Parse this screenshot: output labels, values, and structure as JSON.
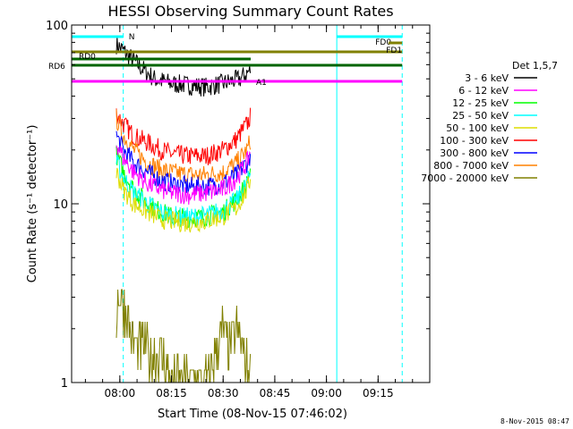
{
  "chart_data": {
    "type": "line",
    "title": "HESSI Observing Summary Count Rates",
    "ylabel": "Count Rate (s⁻¹ detector⁻¹)",
    "xlabel": "Start Time (08-Nov-15 07:46:02)",
    "y_scale": "log",
    "ylim": [
      1,
      100
    ],
    "xlim": [
      "07:46",
      "09:30"
    ],
    "x_ticks": [
      "08:00",
      "08:15",
      "08:30",
      "08:45",
      "09:00",
      "09:15"
    ],
    "y_ticks": [
      {
        "value": 1,
        "label": "1"
      },
      {
        "value": 10,
        "label": "10"
      },
      {
        "value": 100,
        "label": "100"
      }
    ],
    "legend": {
      "placement": "right",
      "title": "Det 1,5,7",
      "entries": [
        {
          "label": "3 - 6 keV",
          "color": "#000000"
        },
        {
          "label": "6 - 12 keV",
          "color": "#ff00ff"
        },
        {
          "label": "12 - 25 keV",
          "color": "#00ff00"
        },
        {
          "label": "25 - 50 keV",
          "color": "#00ffff"
        },
        {
          "label": "50 - 100 keV",
          "color": "#dddd00"
        },
        {
          "label": "100 - 300 keV",
          "color": "#ff0000"
        },
        {
          "label": "300 - 800 keV",
          "color": "#0000ff"
        },
        {
          "label": "800 - 7000 keV",
          "color": "#ff8000"
        },
        {
          "label": "7000 - 20000 keV",
          "color": "#808000"
        }
      ]
    },
    "series": [
      {
        "name": "3 - 6 keV",
        "color": "#000000",
        "x": [
          "07:59",
          "08:01",
          "08:03",
          "08:06",
          "08:10",
          "08:15",
          "08:20",
          "08:25",
          "08:30",
          "08:35",
          "08:38"
        ],
        "y": [
          78,
          72,
          66,
          58,
          50,
          47,
          46,
          45,
          47,
          50,
          56
        ]
      },
      {
        "name": "100 - 300 keV",
        "color": "#ff0000",
        "x": [
          "07:59",
          "08:01",
          "08:04",
          "08:08",
          "08:12",
          "08:15",
          "08:20",
          "08:25",
          "08:30",
          "08:34",
          "08:37",
          "08:38"
        ],
        "y": [
          32,
          28,
          24,
          22,
          20,
          19,
          18.5,
          18.5,
          20,
          23,
          28,
          31
        ]
      },
      {
        "name": "800 - 7000 keV",
        "color": "#ff8000",
        "x": [
          "07:59",
          "08:01",
          "08:04",
          "08:08",
          "08:12",
          "08:15",
          "08:20",
          "08:25",
          "08:30",
          "08:34",
          "08:37",
          "08:38"
        ],
        "y": [
          30,
          24,
          20,
          17,
          15.5,
          15,
          14.5,
          14.5,
          15,
          17,
          20,
          23
        ]
      },
      {
        "name": "300 - 800 keV",
        "color": "#0000ff",
        "x": [
          "07:59",
          "08:01",
          "08:04",
          "08:08",
          "08:12",
          "08:15",
          "08:20",
          "08:25",
          "08:30",
          "08:34",
          "08:37",
          "08:38"
        ],
        "y": [
          24,
          20,
          17,
          15,
          13.5,
          13,
          12.5,
          12.5,
          13,
          14.5,
          17,
          19
        ]
      },
      {
        "name": "12 - 25 keV",
        "color": "#00ff00",
        "x": [
          "07:59",
          "08:01",
          "08:04",
          "08:08",
          "08:12",
          "08:15",
          "08:20",
          "08:25",
          "08:30",
          "08:34",
          "08:37",
          "08:38"
        ],
        "y": [
          19,
          15,
          12,
          10,
          9,
          8.5,
          8.3,
          8.5,
          9,
          10.5,
          13,
          16
        ]
      },
      {
        "name": "25 - 50 keV",
        "color": "#00ffff",
        "x": [
          "07:59",
          "08:01",
          "08:04",
          "08:08",
          "08:12",
          "08:15",
          "08:20",
          "08:25",
          "08:30",
          "08:34",
          "08:37",
          "08:38"
        ],
        "y": [
          17,
          14,
          11.5,
          10,
          9,
          8.6,
          8.4,
          8.6,
          9.2,
          10.5,
          13,
          15
        ]
      },
      {
        "name": "6 - 12 keV",
        "color": "#ff00ff",
        "x": [
          "07:59",
          "08:01",
          "08:04",
          "08:08",
          "08:12",
          "08:15",
          "08:20",
          "08:25",
          "08:30",
          "08:34",
          "08:37",
          "08:38"
        ],
        "y": [
          22,
          18,
          15,
          13,
          12,
          11.5,
          11.2,
          11.5,
          12,
          14,
          17,
          20
        ]
      },
      {
        "name": "50 - 100 keV",
        "color": "#dddd00",
        "x": [
          "07:59",
          "08:01",
          "08:04",
          "08:08",
          "08:12",
          "08:15",
          "08:20",
          "08:25",
          "08:30",
          "08:34",
          "08:37",
          "08:38"
        ],
        "y": [
          15,
          12,
          10,
          9,
          8.2,
          8,
          7.8,
          8,
          8.5,
          9.5,
          12,
          14
        ]
      },
      {
        "name": "7000 - 20000 keV",
        "color": "#808000",
        "x": [
          "07:59",
          "08:00",
          "08:01",
          "08:02",
          "08:03",
          "08:05",
          "08:07",
          "08:09",
          "08:11",
          "08:13",
          "08:15",
          "08:26",
          "08:28",
          "08:30",
          "08:32",
          "08:34",
          "08:36",
          "08:38"
        ],
        "y": [
          2.5,
          3.2,
          2.8,
          2.4,
          1.9,
          1.5,
          1.7,
          1.3,
          1.5,
          1.3,
          1.0,
          1.0,
          1.5,
          1.9,
          1.6,
          1.9,
          1.4,
          1.0
        ]
      }
    ],
    "bars": [
      {
        "label": "N",
        "start": "07:46",
        "end": "08:01",
        "color": "#00ffff"
      },
      {
        "label": "",
        "start": "09:03",
        "end": "09:22",
        "color": "#00ffff"
      },
      {
        "label": "FD0",
        "start": "07:46",
        "end": "09:22",
        "color": "#808000"
      },
      {
        "label": "FD1",
        "start": "09:18",
        "end": "09:22",
        "color": "#808000"
      },
      {
        "label": "RD0",
        "start": "07:46",
        "end": "08:38",
        "color": "#006400"
      },
      {
        "label": "RD6",
        "start": "07:46",
        "end": "09:22",
        "color": "#006400"
      },
      {
        "label": "A1",
        "start": "07:46",
        "end": "09:22",
        "color": "#ff00ff"
      }
    ],
    "vertical_lines": [
      {
        "x": "07:46",
        "style": "solid",
        "color": "#00ffff"
      },
      {
        "x": "08:01",
        "style": "dashed",
        "color": "#00ffff"
      },
      {
        "x": "09:03",
        "style": "solid",
        "color": "#00ffff"
      },
      {
        "x": "09:22",
        "style": "dashed",
        "color": "#00ffff"
      }
    ]
  },
  "footer": {
    "date_stamp": "8-Nov-2015 08:47"
  }
}
